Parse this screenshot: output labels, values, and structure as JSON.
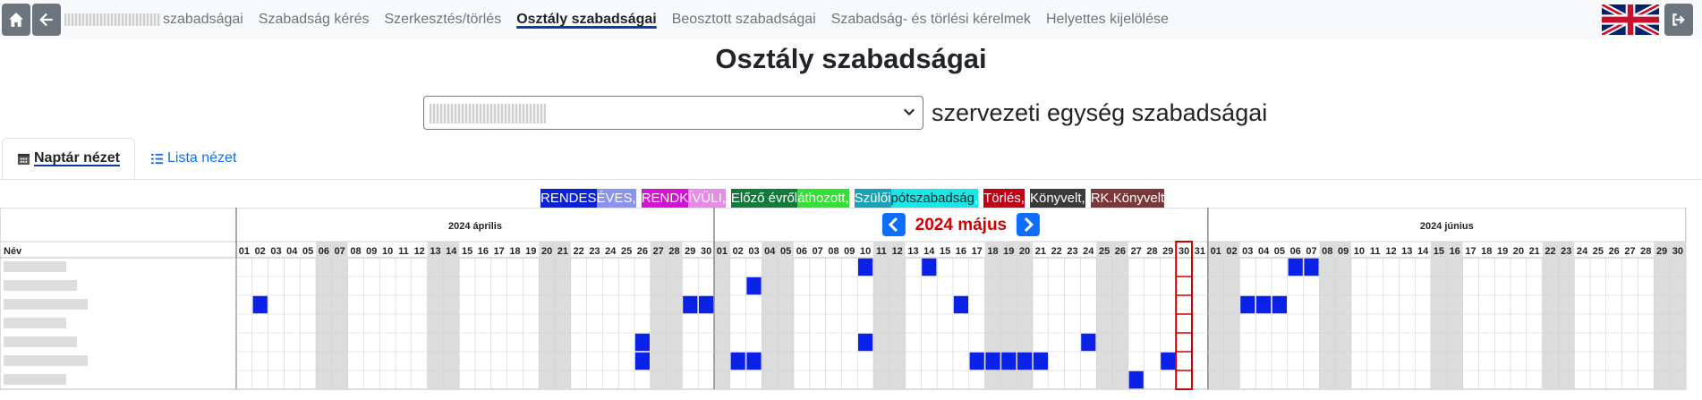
{
  "nav": {
    "items": [
      {
        "label": "szabadságai",
        "active": false,
        "redacted": true
      },
      {
        "label": "Szabadság kérés",
        "active": false
      },
      {
        "label": "Szerkesztés/törlés",
        "active": false
      },
      {
        "label": "Osztály szabadságai",
        "active": true
      },
      {
        "label": "Beosztott szabadságai",
        "active": false
      },
      {
        "label": "Szabadság- és törlési kérelmek",
        "active": false
      },
      {
        "label": "Helyettes kijelölése",
        "active": false
      }
    ],
    "home_icon": "home-icon",
    "back_icon": "arrow-left-icon",
    "language_flag": "uk-flag-icon",
    "logout_icon": "logout-icon"
  },
  "page": {
    "title": "Osztály szabadságai"
  },
  "unit_select": {
    "suffix": "szervezeti egység szabadságai"
  },
  "tabs": {
    "calendar": "Naptár nézet",
    "list": "Lista nézet"
  },
  "legend": [
    {
      "a": "RENDES",
      "b": "ÉVES",
      "sep": ",",
      "ca": "#0a22d8",
      "cb": "#8c92f0",
      "ta": "#fff",
      "tb": "#fff"
    },
    {
      "a": "RENDK",
      "b": "ÍVÜLI",
      "sep": ",",
      "ca": "#d414d4",
      "cb": "#e88ae8",
      "ta": "#fff",
      "tb": "#fff"
    },
    {
      "a": "Előző évről",
      "b": "áthozott",
      "sep": ",",
      "ca": "#127a3a",
      "cb": "#33e033",
      "ta": "#fff",
      "tb": "#fff"
    },
    {
      "a": "Szülői",
      "b": "pótszabadság",
      "sep": ",",
      "ca": "#17a2b8",
      "cb": "#19e6e6",
      "ta": "#fff",
      "tb": "#212529"
    },
    {
      "a": "Törlés",
      "b": "",
      "sep": ",",
      "ca": "#c00014",
      "cb": "",
      "ta": "#fff",
      "tb": "#fff"
    },
    {
      "a": "Könyvelt",
      "b": "",
      "sep": ",",
      "ca": "#3a3a3a",
      "cb": "",
      "ta": "#fff",
      "tb": "#fff"
    },
    {
      "a": "RK.Könyvelt",
      "b": "",
      "sep": "",
      "ca": "#7a3838",
      "cb": "",
      "ta": "#fff",
      "tb": "#fff"
    }
  ],
  "calendar": {
    "name_header": "Név",
    "months": [
      {
        "label": "2024 április",
        "days": 30,
        "weekend": [
          6,
          7,
          13,
          14,
          20,
          21,
          27,
          28
        ],
        "center": false
      },
      {
        "label": "2024 május",
        "days": 31,
        "weekend": [
          1,
          4,
          5,
          11,
          12,
          18,
          19,
          20,
          25,
          26
        ],
        "center": true,
        "today": 30
      },
      {
        "label": "2024 június",
        "days": 30,
        "weekend": [
          1,
          2,
          8,
          9,
          15,
          16,
          22,
          23,
          29,
          30
        ],
        "center": false
      }
    ],
    "rows": 7,
    "leave": [
      {
        "row": 0,
        "m": 1,
        "d": [
          10,
          14
        ]
      },
      {
        "row": 0,
        "m": 2,
        "d": [
          6,
          7
        ]
      },
      {
        "row": 1,
        "m": 1,
        "d": [
          3
        ]
      },
      {
        "row": 2,
        "m": 0,
        "d": [
          2,
          29,
          30
        ]
      },
      {
        "row": 2,
        "m": 1,
        "d": [
          16
        ]
      },
      {
        "row": 2,
        "m": 2,
        "d": [
          3,
          4,
          5
        ]
      },
      {
        "row": 4,
        "m": 0,
        "d": [
          26
        ]
      },
      {
        "row": 4,
        "m": 1,
        "d": [
          10,
          24
        ]
      },
      {
        "row": 5,
        "m": 0,
        "d": [
          26
        ]
      },
      {
        "row": 5,
        "m": 1,
        "d": [
          2,
          3,
          17,
          18,
          19,
          20,
          21,
          29
        ]
      },
      {
        "row": 6,
        "m": 1,
        "d": [
          27
        ]
      }
    ],
    "colors": {
      "leave": "#0a22e8",
      "weekend": "#dcdcdc",
      "grid": "#cfcfcf",
      "today": "#d00000",
      "arrow": "#0d6efd",
      "center_month": "#d00000"
    }
  }
}
